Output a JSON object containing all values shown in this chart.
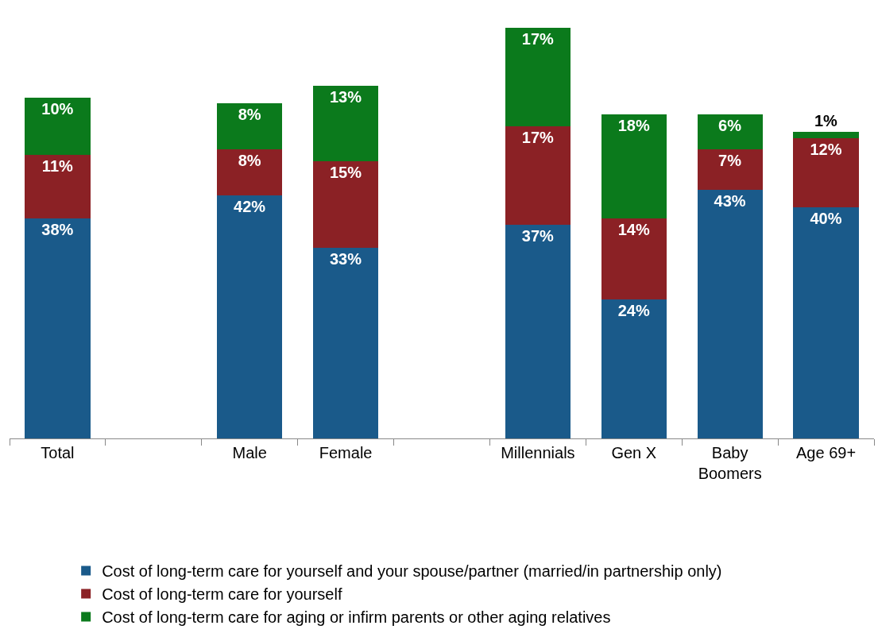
{
  "chart_data": {
    "type": "bar",
    "stacked": true,
    "legend": "bottom",
    "categories": [
      "Total",
      null,
      "Male",
      "Female",
      null,
      "Millennials",
      "Gen X",
      "Baby Boomers",
      "Age 69+"
    ],
    "series": [
      {
        "name": "Cost of long-term care for yourself and your spouse/partner (married/in partnership only)",
        "color": "#1a5a8a",
        "values": [
          38,
          null,
          42,
          33,
          null,
          37,
          24,
          43,
          40
        ],
        "value_labels": [
          "38%",
          null,
          "42%",
          "33%",
          null,
          "37%",
          "24%",
          "43%",
          "40%"
        ]
      },
      {
        "name": "Cost of long-term care for yourself",
        "color": "#8b2125",
        "values": [
          11,
          null,
          8,
          15,
          null,
          17,
          14,
          7,
          12
        ],
        "value_labels": [
          "11%",
          null,
          "8%",
          "15%",
          null,
          "17%",
          "14%",
          "7%",
          "12%"
        ]
      },
      {
        "name": "Cost of long-term care for aging or infirm parents or other aging relatives",
        "color": "#0b7a1c",
        "values": [
          10,
          null,
          8,
          13,
          null,
          17,
          18,
          6,
          1
        ],
        "value_labels": [
          "10%",
          null,
          "8%",
          "13%",
          null,
          "17%",
          "18%",
          "6%",
          "1%"
        ]
      }
    ]
  }
}
